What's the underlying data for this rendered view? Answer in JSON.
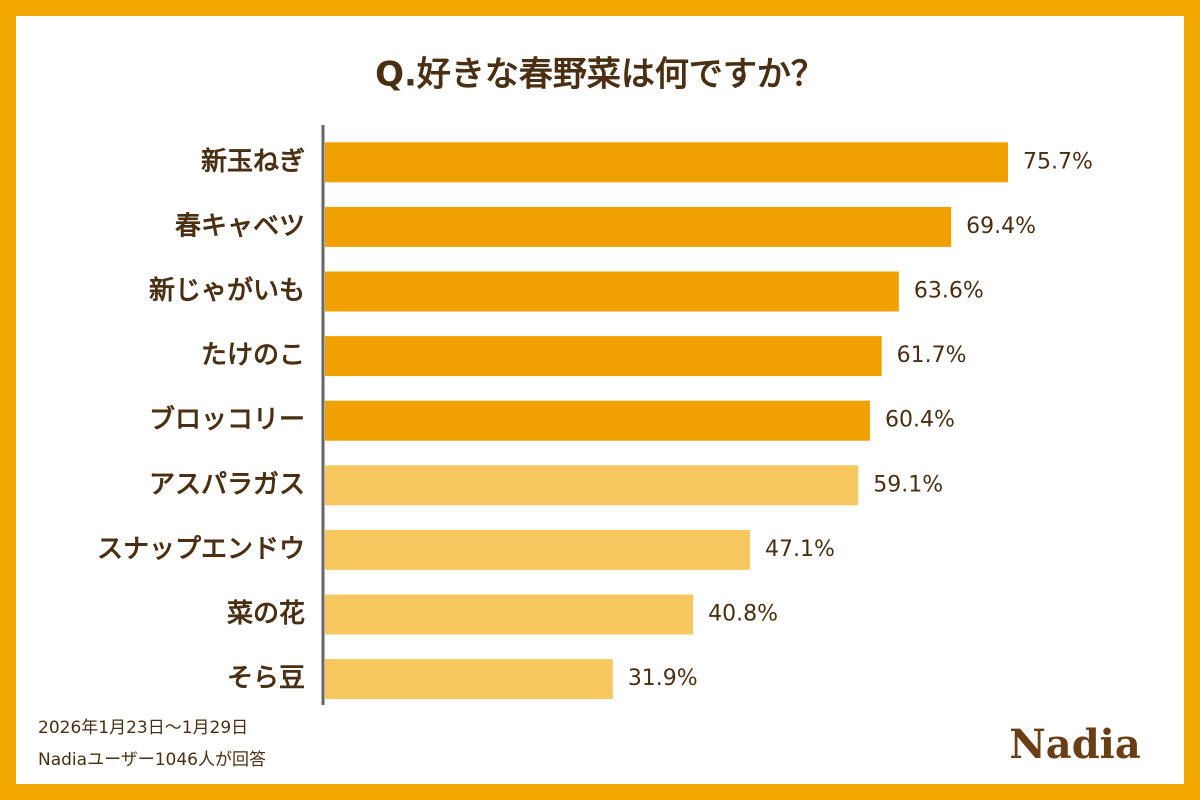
{
  "chart_data": {
    "type": "bar",
    "orientation": "horizontal",
    "title": "Q.好きな春野菜は何ですか？",
    "categories": [
      "新玉ねぎ",
      "春キャベツ",
      "新じゃがいも",
      "たけのこ",
      "ブロッコリー",
      "アスパラガス",
      "スナップエンドウ",
      "菜の花",
      "そら豆"
    ],
    "values": [
      75.7,
      69.4,
      63.6,
      61.7,
      60.4,
      59.1,
      47.1,
      40.8,
      31.9
    ],
    "value_labels": [
      "75.7%",
      "69.4%",
      "63.6%",
      "61.7%",
      "60.4%",
      "59.1%",
      "47.1%",
      "40.8%",
      "31.9%"
    ],
    "colors": [
      "#f0a000",
      "#f0a000",
      "#f0a000",
      "#f0a000",
      "#f0a000",
      "#f8c860",
      "#f8c860",
      "#f8c860",
      "#f8c860"
    ],
    "notes": [
      "2026年1月23日～1月29日",
      "Nadiaユーザー1046人が回答"
    ],
    "brand": "Nadia"
  }
}
